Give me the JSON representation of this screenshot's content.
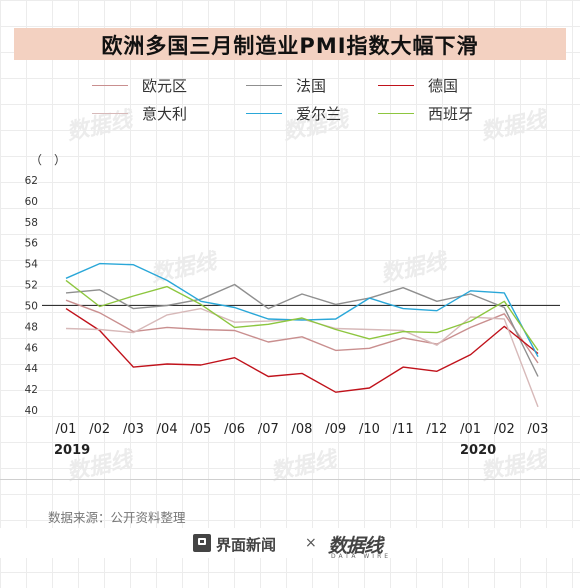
{
  "title": "欧洲多国三月制造业PMI指数大幅下滑",
  "source": "数据来源：公开资料整理",
  "footer": {
    "brand1": "界面新闻",
    "times": "×",
    "brand2": "数据线",
    "brand2_sub": "DATA WIRE"
  },
  "watermark": "数据线",
  "chart_data": {
    "type": "line",
    "ylabel": "（　）",
    "ylim": [
      40,
      62
    ],
    "yticks": [
      40,
      42,
      44,
      46,
      48,
      50,
      52,
      54,
      56,
      58,
      60,
      62
    ],
    "categories": [
      "/01",
      "/02",
      "/03",
      "/04",
      "/05",
      "/06",
      "/07",
      "/08",
      "/09",
      "/10",
      "/11",
      "/12",
      "/01",
      "/02",
      "/03"
    ],
    "years": [
      {
        "label": "2019",
        "at": 0
      },
      {
        "label": "2020",
        "at": 12
      }
    ],
    "reference_line": 50,
    "series": [
      {
        "name": "欧元区",
        "color": "#c98f8f",
        "values": [
          50.5,
          49.3,
          47.5,
          47.9,
          47.7,
          47.6,
          46.5,
          47.0,
          45.7,
          45.9,
          46.9,
          46.3,
          47.9,
          49.2,
          44.5
        ]
      },
      {
        "name": "法国",
        "color": "#8f8f8f",
        "values": [
          51.2,
          51.5,
          49.7,
          50.0,
          50.6,
          52.0,
          49.7,
          51.1,
          50.1,
          50.7,
          51.7,
          50.4,
          51.1,
          49.8,
          43.2
        ]
      },
      {
        "name": "德国",
        "color": "#c0121b",
        "values": [
          49.7,
          47.6,
          44.1,
          44.4,
          44.3,
          45.0,
          43.2,
          43.5,
          41.7,
          42.1,
          44.1,
          43.7,
          45.3,
          48.0,
          45.4
        ]
      },
      {
        "name": "意大利",
        "color": "#d7b9b9",
        "values": [
          47.8,
          47.7,
          47.4,
          49.1,
          49.7,
          48.4,
          48.5,
          48.7,
          47.8,
          47.7,
          47.6,
          46.2,
          48.9,
          48.7,
          40.3
        ]
      },
      {
        "name": "爱尔兰",
        "color": "#2aa7d8",
        "values": [
          52.6,
          54.0,
          53.9,
          52.4,
          50.4,
          49.8,
          48.7,
          48.6,
          48.7,
          50.7,
          49.7,
          49.5,
          51.4,
          51.2,
          45.1
        ]
      },
      {
        "name": "西班牙",
        "color": "#8dc63f",
        "values": [
          52.4,
          49.9,
          50.9,
          51.8,
          50.1,
          47.9,
          48.2,
          48.8,
          47.7,
          46.8,
          47.5,
          47.4,
          48.5,
          50.4,
          45.7
        ]
      }
    ]
  }
}
